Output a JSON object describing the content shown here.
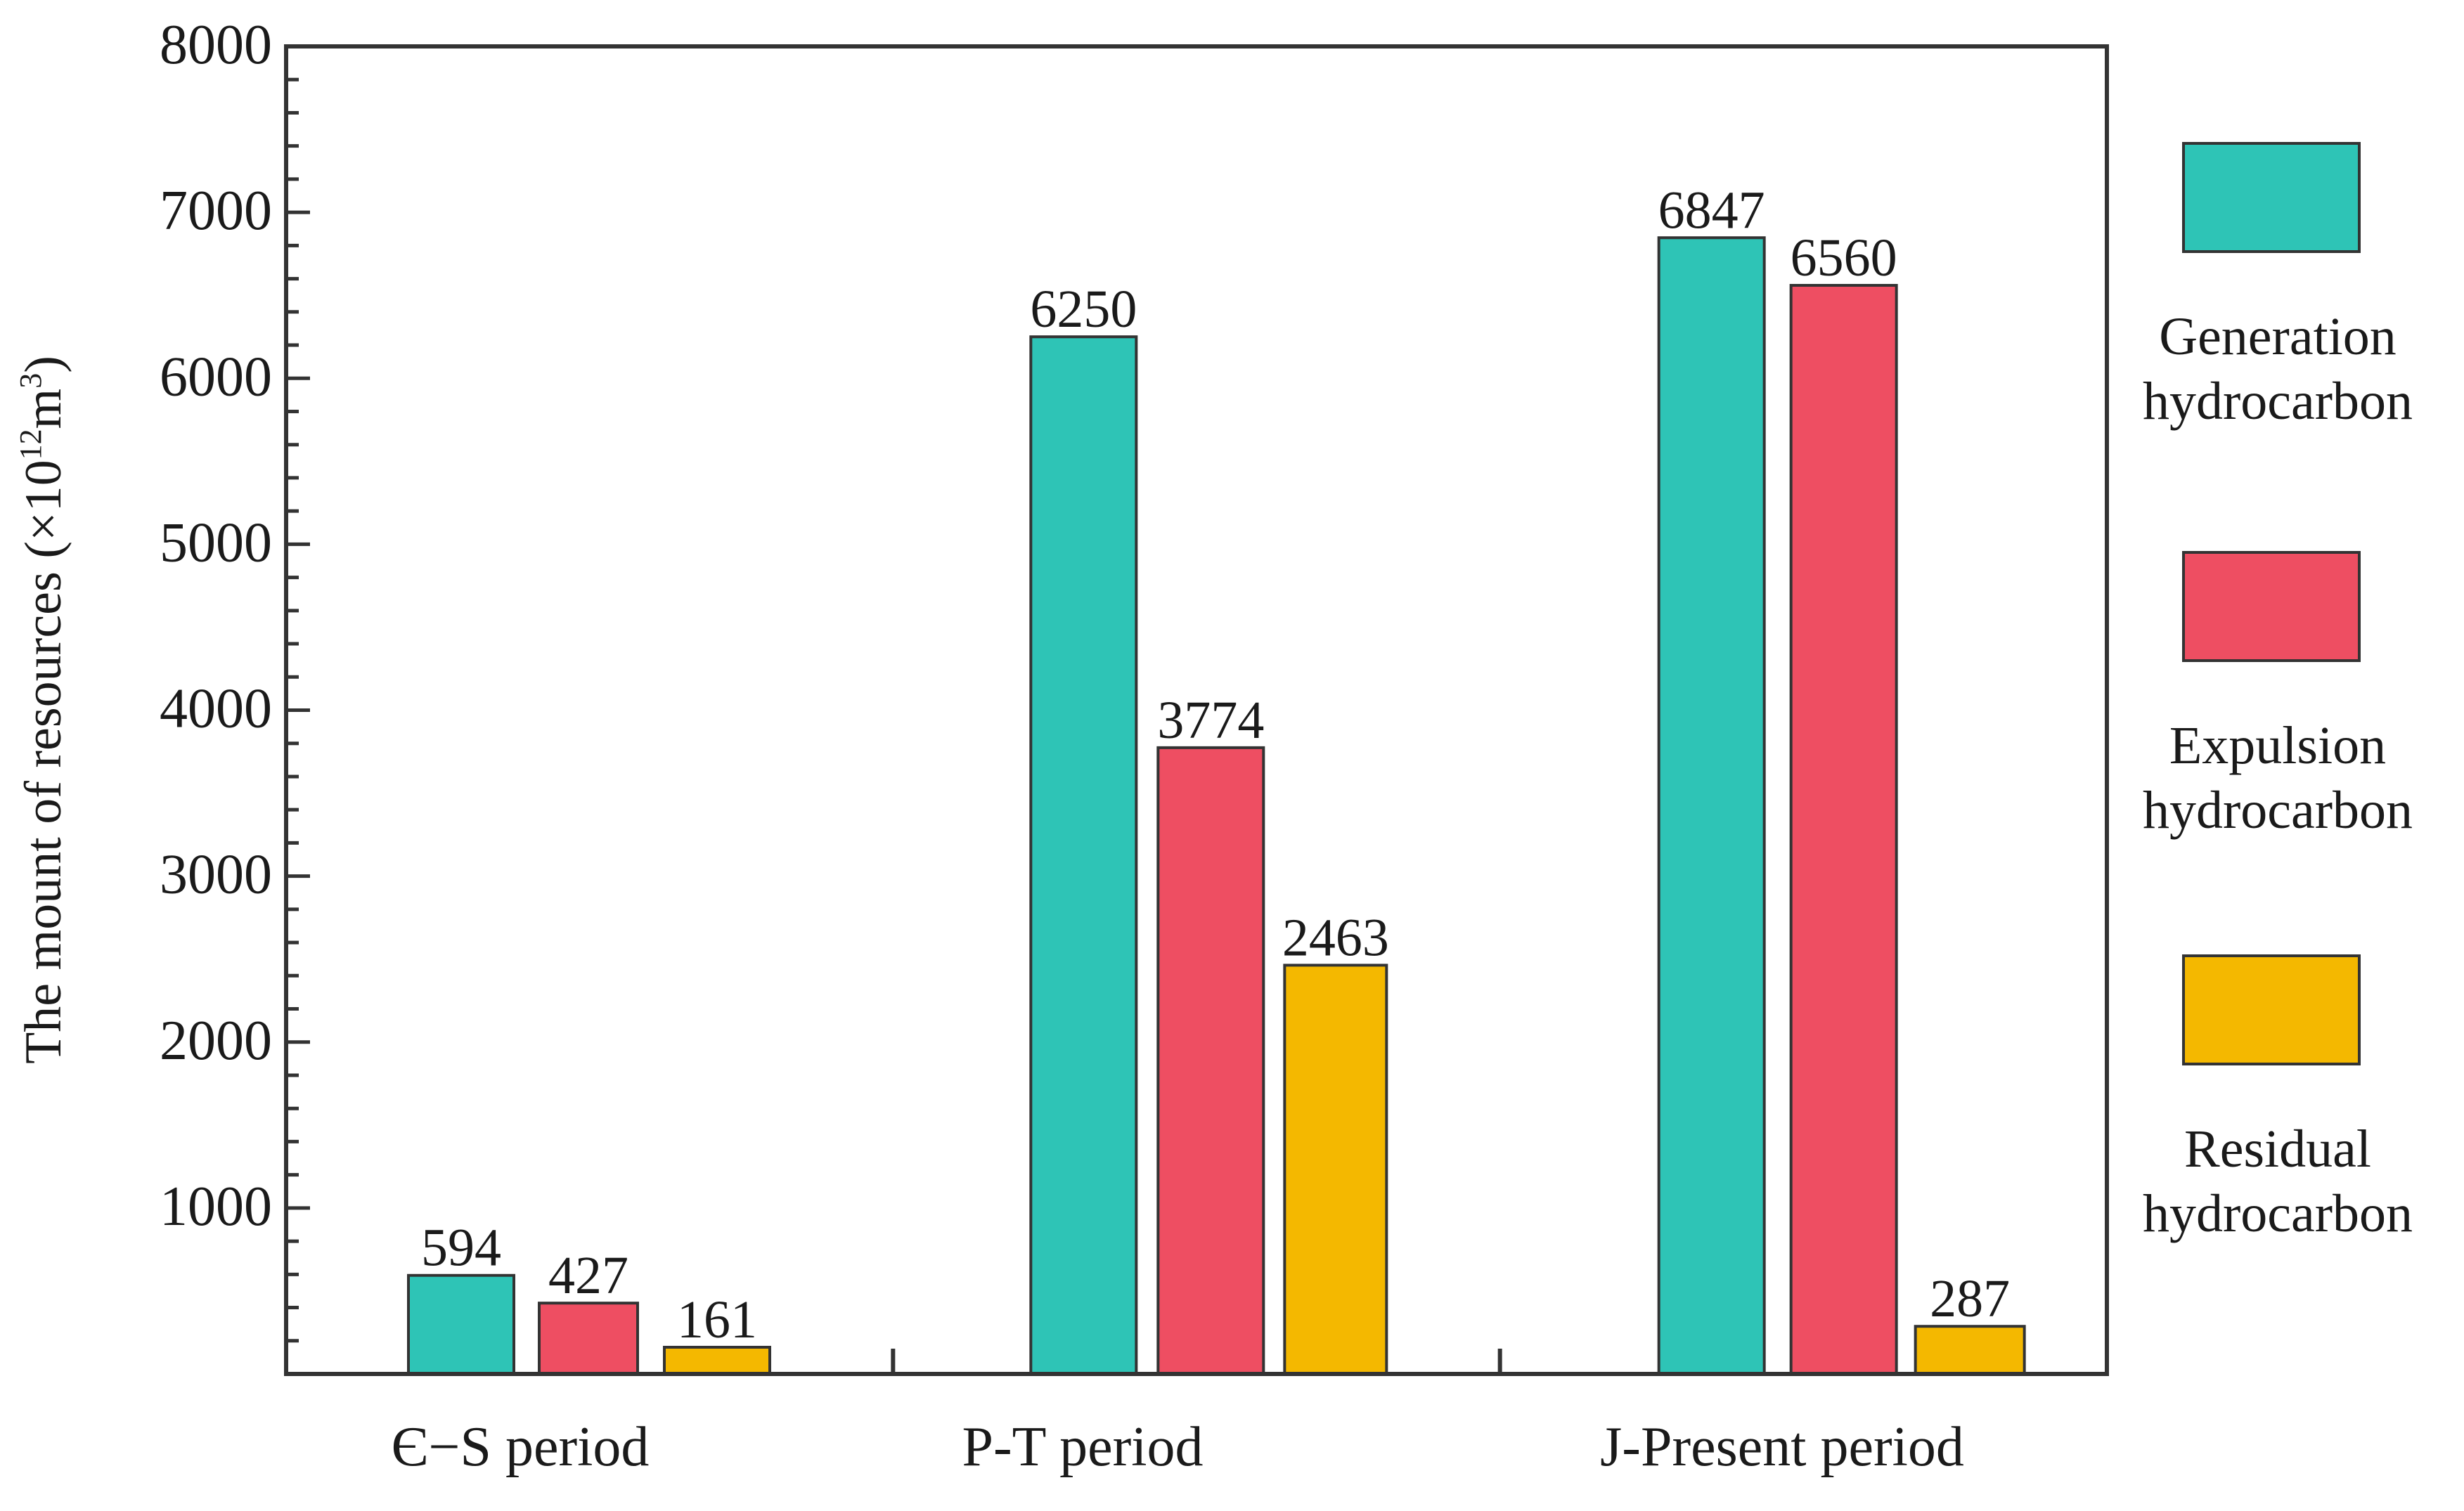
{
  "chart_data": {
    "type": "bar",
    "title": "",
    "xlabel": "",
    "ylabel": "The mount of resources (×10",
    "ylabel_exp1": "12",
    "ylabel_unit": "m",
    "ylabel_exp2": "3",
    "ylabel_close": ")",
    "ylim": [
      0,
      8000
    ],
    "yticks": [
      1000,
      2000,
      3000,
      4000,
      5000,
      6000,
      7000,
      8000
    ],
    "ytick_labels": [
      "1000",
      "2000",
      "3000",
      "4000",
      "5000",
      "6000",
      "7000",
      "8000"
    ],
    "grid": false,
    "legend_position": "right",
    "categories": [
      "Є−S period",
      "P-T period",
      "J-Present period"
    ],
    "series": [
      {
        "name": "Generation hydrocarbon",
        "legend_lines": [
          "Generation",
          "hydrocarbon"
        ],
        "color": "#2EC4B6",
        "values": [
          594,
          6250,
          6847
        ],
        "labels": [
          "594",
          "6250",
          "6847"
        ]
      },
      {
        "name": "Expulsion hydrocarbon",
        "legend_lines": [
          "Expulsion",
          "hydrocarbon"
        ],
        "color": "#EE4E62",
        "values": [
          427,
          3774,
          6560
        ],
        "labels": [
          "427",
          "3774",
          "6560"
        ]
      },
      {
        "name": "Residual hydrocarbon",
        "legend_lines": [
          "Residual",
          "hydrocarbon"
        ],
        "color": "#F4B800",
        "values": [
          161,
          2463,
          287
        ],
        "labels": [
          "161",
          "2463",
          "287"
        ]
      }
    ]
  }
}
